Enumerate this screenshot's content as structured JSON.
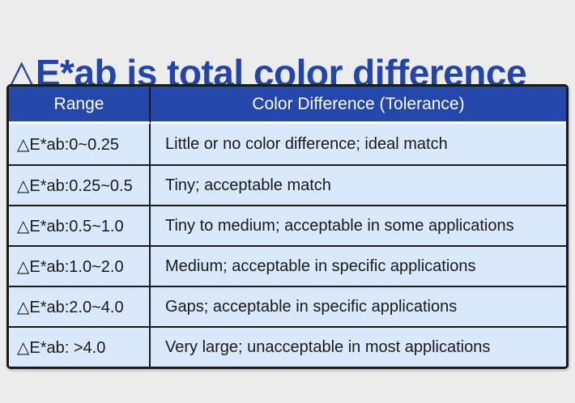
{
  "colors": {
    "page_bg": "#ececec",
    "title": "#2245ad",
    "header_bg": "#2347ab",
    "header_text": "#ffffff",
    "row_bg": "#d9e8fa",
    "border": "#1a1a1a",
    "text": "#1a1a1a"
  },
  "title": {
    "text": "△E*ab is total color difference"
  },
  "table": {
    "headers": [
      "Range",
      "Color Difference (Tolerance)"
    ],
    "rows": [
      {
        "range": "△E*ab:0~0.25",
        "description": "Little or no color difference; ideal match"
      },
      {
        "range": "△E*ab:0.25~0.5",
        "description": "Tiny; acceptable match"
      },
      {
        "range": "△E*ab:0.5~1.0",
        "description": "Tiny to medium; acceptable in some applications"
      },
      {
        "range": "△E*ab:1.0~2.0",
        "description": "Medium; acceptable in specific applications"
      },
      {
        "range": "△E*ab:2.0~4.0",
        "description": "Gaps; acceptable in specific applications"
      },
      {
        "range": "△E*ab: >4.0",
        "description": "Very large; unacceptable in most applications"
      }
    ]
  }
}
